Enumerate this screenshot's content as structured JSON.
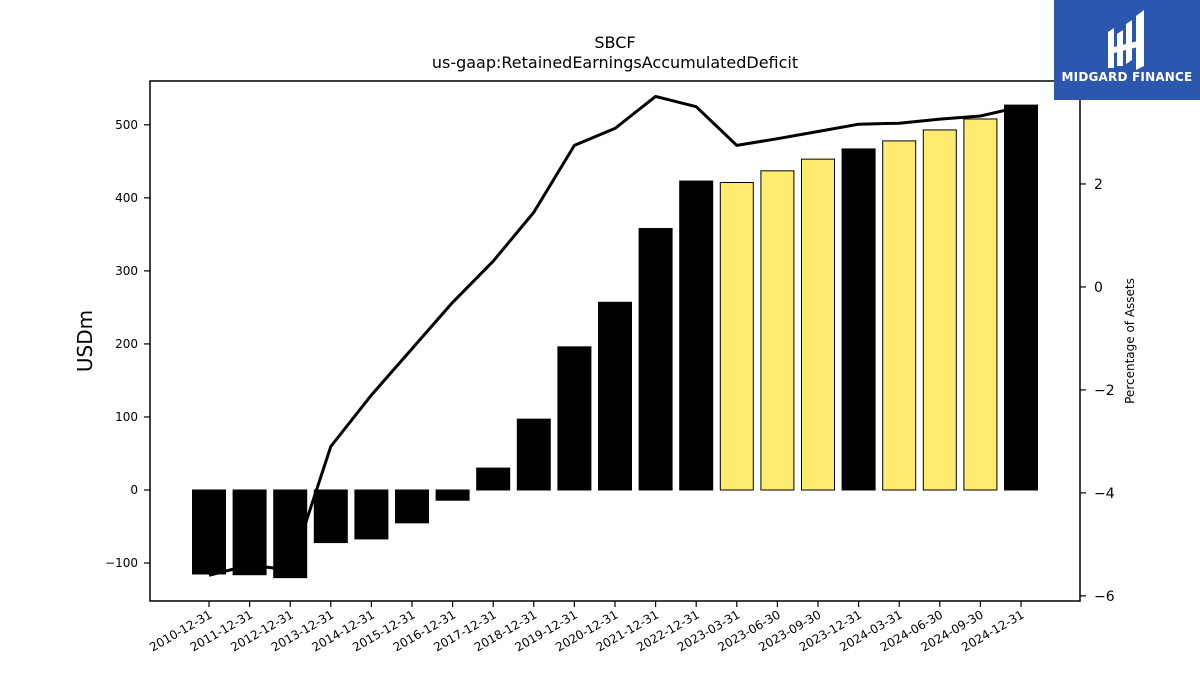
{
  "chart_data": {
    "type": "bar",
    "title": "SBCF",
    "subtitle": "us-gaap:RetainedEarningsAccumulatedDeficit",
    "ylabel": "USDm",
    "y2label": "Percentage of Assets",
    "ylim": [
      -152,
      560
    ],
    "y2lim": [
      -6.1,
      4.0
    ],
    "yticks": [
      -100,
      0,
      100,
      200,
      300,
      400,
      500
    ],
    "y2ticks": [
      -6,
      -4,
      -2,
      0,
      2
    ],
    "categories": [
      "2010-12-31",
      "2011-12-31",
      "2012-12-31",
      "2013-12-31",
      "2014-12-31",
      "2015-12-31",
      "2016-12-31",
      "2017-12-31",
      "2018-12-31",
      "2019-12-31",
      "2020-12-31",
      "2021-12-31",
      "2022-12-31",
      "2023-03-31",
      "2023-06-30",
      "2023-09-30",
      "2023-12-31",
      "2024-03-31",
      "2024-06-30",
      "2024-09-30",
      "2024-12-31"
    ],
    "series": [
      {
        "kind": "bar",
        "values": [
          -115,
          -116,
          -120,
          -72,
          -67,
          -45,
          -14,
          30,
          97,
          196,
          257,
          358,
          423,
          421,
          437,
          453,
          467,
          478,
          493,
          508,
          527
        ],
        "colors": [
          "#000000",
          "#000000",
          "#000000",
          "#000000",
          "#000000",
          "#000000",
          "#000000",
          "#000000",
          "#000000",
          "#000000",
          "#000000",
          "#000000",
          "#000000",
          "#ffeb70",
          "#ffeb70",
          "#ffeb70",
          "#000000",
          "#ffeb70",
          "#ffeb70",
          "#ffeb70",
          "#000000"
        ]
      },
      {
        "kind": "line",
        "axis": "right",
        "values": [
          -5.6,
          -5.4,
          -5.5,
          -3.1,
          -2.1,
          -1.2,
          -0.3,
          0.5,
          1.45,
          2.75,
          3.08,
          3.7,
          3.5,
          2.75,
          2.88,
          3.02,
          3.16,
          3.18,
          3.26,
          3.32,
          3.5
        ],
        "color": "#000000"
      }
    ]
  },
  "logo": {
    "text": "MIDGARD FINANCE",
    "bg": "#2c57ae"
  }
}
